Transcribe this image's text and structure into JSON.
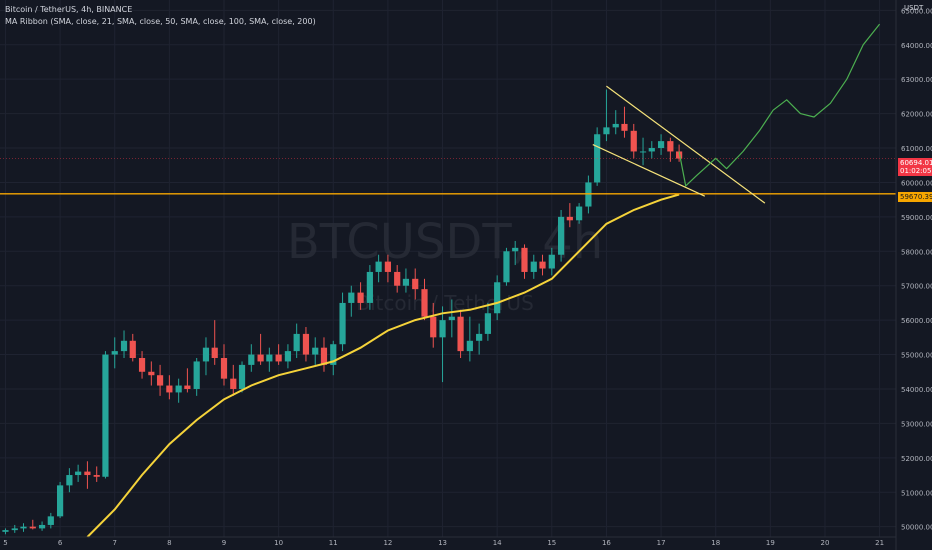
{
  "legend": {
    "symbol_line": "Bitcoin / TetherUS, 4h, BINANCE",
    "indicator_line": "MA Ribbon (SMA, close, 21, SMA, close, 50, SMA, close, 100, SMA, close, 200)"
  },
  "watermark": {
    "symbol": "BTCUSDT, 4h",
    "name": "Bitcoin / TetherUS"
  },
  "currency": "USDT",
  "price_tags": {
    "current": "60694.01",
    "countdown": "01:02:05",
    "level": "59670.39"
  },
  "colors": {
    "background": "#141823",
    "up": "#26a69a",
    "down": "#ef5350",
    "ma": "#f5d33a",
    "level": "#f7a600",
    "projection": "#4caf50",
    "wedge": "#f5e27a",
    "current_price": "#f23645"
  },
  "chart_data": {
    "type": "candlestick",
    "x_axis": {
      "range": [
        4.9,
        21.3
      ],
      "tick_labels": [
        "5",
        "6",
        "7",
        "8",
        "9",
        "10",
        "11",
        "12",
        "13",
        "14",
        "15",
        "16",
        "17",
        "18",
        "19",
        "20",
        "21"
      ]
    },
    "y_axis": {
      "range": [
        49700,
        65300
      ],
      "tick_labels": [
        "50000.00",
        "51000.00",
        "52000.00",
        "53000.00",
        "54000.00",
        "55000.00",
        "56000.00",
        "57000.00",
        "58000.00",
        "59000.00",
        "60000.00",
        "61000.00",
        "62000.00",
        "63000.00",
        "64000.00",
        "65000.00"
      ]
    },
    "grid": true,
    "candles": [
      {
        "t": 5.0,
        "o": 49850,
        "h": 49950,
        "l": 49780,
        "c": 49900
      },
      {
        "t": 5.17,
        "o": 49900,
        "h": 50050,
        "l": 49820,
        "c": 49950
      },
      {
        "t": 5.33,
        "o": 49950,
        "h": 50100,
        "l": 49850,
        "c": 50000
      },
      {
        "t": 5.5,
        "o": 50000,
        "h": 50200,
        "l": 49920,
        "c": 49950
      },
      {
        "t": 5.67,
        "o": 49950,
        "h": 50150,
        "l": 49880,
        "c": 50050
      },
      {
        "t": 5.83,
        "o": 50050,
        "h": 50400,
        "l": 49950,
        "c": 50300
      },
      {
        "t": 6.0,
        "o": 50300,
        "h": 51300,
        "l": 50250,
        "c": 51200
      },
      {
        "t": 6.17,
        "o": 51200,
        "h": 51700,
        "l": 51000,
        "c": 51500
      },
      {
        "t": 6.33,
        "o": 51500,
        "h": 51800,
        "l": 51300,
        "c": 51600
      },
      {
        "t": 6.5,
        "o": 51600,
        "h": 51900,
        "l": 51100,
        "c": 51500
      },
      {
        "t": 6.67,
        "o": 51500,
        "h": 51750,
        "l": 51300,
        "c": 51450
      },
      {
        "t": 6.83,
        "o": 51450,
        "h": 55100,
        "l": 51400,
        "c": 55000
      },
      {
        "t": 7.0,
        "o": 55000,
        "h": 55500,
        "l": 54600,
        "c": 55100
      },
      {
        "t": 7.17,
        "o": 55100,
        "h": 55700,
        "l": 54900,
        "c": 55400
      },
      {
        "t": 7.33,
        "o": 55400,
        "h": 55600,
        "l": 54800,
        "c": 54900
      },
      {
        "t": 7.5,
        "o": 54900,
        "h": 55100,
        "l": 54300,
        "c": 54500
      },
      {
        "t": 7.67,
        "o": 54500,
        "h": 54800,
        "l": 54100,
        "c": 54400
      },
      {
        "t": 7.83,
        "o": 54400,
        "h": 54700,
        "l": 53800,
        "c": 54100
      },
      {
        "t": 8.0,
        "o": 54100,
        "h": 54400,
        "l": 53700,
        "c": 53900
      },
      {
        "t": 8.17,
        "o": 53900,
        "h": 54300,
        "l": 53600,
        "c": 54100
      },
      {
        "t": 8.33,
        "o": 54100,
        "h": 54600,
        "l": 53900,
        "c": 54000
      },
      {
        "t": 8.5,
        "o": 54000,
        "h": 54900,
        "l": 53800,
        "c": 54800
      },
      {
        "t": 8.67,
        "o": 54800,
        "h": 55500,
        "l": 54400,
        "c": 55200
      },
      {
        "t": 8.83,
        "o": 55200,
        "h": 56000,
        "l": 54700,
        "c": 54900
      },
      {
        "t": 9.0,
        "o": 54900,
        "h": 55300,
        "l": 54100,
        "c": 54300
      },
      {
        "t": 9.17,
        "o": 54300,
        "h": 54700,
        "l": 53800,
        "c": 54000
      },
      {
        "t": 9.33,
        "o": 54000,
        "h": 54800,
        "l": 53900,
        "c": 54700
      },
      {
        "t": 9.5,
        "o": 54700,
        "h": 55300,
        "l": 54500,
        "c": 55000
      },
      {
        "t": 9.67,
        "o": 55000,
        "h": 55600,
        "l": 54700,
        "c": 54800
      },
      {
        "t": 9.83,
        "o": 54800,
        "h": 55200,
        "l": 54500,
        "c": 55000
      },
      {
        "t": 10.0,
        "o": 55000,
        "h": 55300,
        "l": 54700,
        "c": 54800
      },
      {
        "t": 10.17,
        "o": 54800,
        "h": 55300,
        "l": 54600,
        "c": 55100
      },
      {
        "t": 10.33,
        "o": 55100,
        "h": 55900,
        "l": 54900,
        "c": 55600
      },
      {
        "t": 10.5,
        "o": 55600,
        "h": 55800,
        "l": 54800,
        "c": 55000
      },
      {
        "t": 10.67,
        "o": 55000,
        "h": 55500,
        "l": 54700,
        "c": 55200
      },
      {
        "t": 10.83,
        "o": 55200,
        "h": 55500,
        "l": 54500,
        "c": 54700
      },
      {
        "t": 11.0,
        "o": 54700,
        "h": 55400,
        "l": 54400,
        "c": 55300
      },
      {
        "t": 11.17,
        "o": 55300,
        "h": 56800,
        "l": 55100,
        "c": 56500
      },
      {
        "t": 11.33,
        "o": 56500,
        "h": 57000,
        "l": 56100,
        "c": 56800
      },
      {
        "t": 11.5,
        "o": 56800,
        "h": 57100,
        "l": 56300,
        "c": 56500
      },
      {
        "t": 11.67,
        "o": 56500,
        "h": 57600,
        "l": 56300,
        "c": 57400
      },
      {
        "t": 11.83,
        "o": 57400,
        "h": 57900,
        "l": 57100,
        "c": 57700
      },
      {
        "t": 12.0,
        "o": 57700,
        "h": 57900,
        "l": 57100,
        "c": 57400
      },
      {
        "t": 12.17,
        "o": 57400,
        "h": 57600,
        "l": 56800,
        "c": 57000
      },
      {
        "t": 12.33,
        "o": 57000,
        "h": 57500,
        "l": 56800,
        "c": 57200
      },
      {
        "t": 12.5,
        "o": 57200,
        "h": 57500,
        "l": 56600,
        "c": 56900
      },
      {
        "t": 12.67,
        "o": 56900,
        "h": 57200,
        "l": 56000,
        "c": 56100
      },
      {
        "t": 12.83,
        "o": 56100,
        "h": 56500,
        "l": 55200,
        "c": 55500
      },
      {
        "t": 13.0,
        "o": 55500,
        "h": 56400,
        "l": 54200,
        "c": 56000
      },
      {
        "t": 13.17,
        "o": 56000,
        "h": 56600,
        "l": 55500,
        "c": 56100
      },
      {
        "t": 13.33,
        "o": 56100,
        "h": 56300,
        "l": 54900,
        "c": 55100
      },
      {
        "t": 13.5,
        "o": 55100,
        "h": 56100,
        "l": 54800,
        "c": 55400
      },
      {
        "t": 13.67,
        "o": 55400,
        "h": 55900,
        "l": 55000,
        "c": 55600
      },
      {
        "t": 13.83,
        "o": 55600,
        "h": 56500,
        "l": 55400,
        "c": 56200
      },
      {
        "t": 14.0,
        "o": 56200,
        "h": 57300,
        "l": 56000,
        "c": 57100
      },
      {
        "t": 14.17,
        "o": 57100,
        "h": 58100,
        "l": 57000,
        "c": 58000
      },
      {
        "t": 14.33,
        "o": 58000,
        "h": 58300,
        "l": 57600,
        "c": 58100
      },
      {
        "t": 14.5,
        "o": 58100,
        "h": 58200,
        "l": 57200,
        "c": 57400
      },
      {
        "t": 14.67,
        "o": 57400,
        "h": 57900,
        "l": 57200,
        "c": 57700
      },
      {
        "t": 14.83,
        "o": 57700,
        "h": 57900,
        "l": 57300,
        "c": 57500
      },
      {
        "t": 15.0,
        "o": 57500,
        "h": 58100,
        "l": 57300,
        "c": 57900
      },
      {
        "t": 15.17,
        "o": 57900,
        "h": 59200,
        "l": 57700,
        "c": 59000
      },
      {
        "t": 15.33,
        "o": 59000,
        "h": 59400,
        "l": 58700,
        "c": 58900
      },
      {
        "t": 15.5,
        "o": 58900,
        "h": 59400,
        "l": 58800,
        "c": 59300
      },
      {
        "t": 15.67,
        "o": 59300,
        "h": 60200,
        "l": 59100,
        "c": 60000
      },
      {
        "t": 15.83,
        "o": 60000,
        "h": 61600,
        "l": 59900,
        "c": 61400
      },
      {
        "t": 16.0,
        "o": 61400,
        "h": 62700,
        "l": 61200,
        "c": 61600
      },
      {
        "t": 16.17,
        "o": 61600,
        "h": 62100,
        "l": 61400,
        "c": 61700
      },
      {
        "t": 16.33,
        "o": 61700,
        "h": 62200,
        "l": 61300,
        "c": 61500
      },
      {
        "t": 16.5,
        "o": 61500,
        "h": 61700,
        "l": 60700,
        "c": 60900
      },
      {
        "t": 16.67,
        "o": 60900,
        "h": 61300,
        "l": 60500,
        "c": 60900
      },
      {
        "t": 16.83,
        "o": 60900,
        "h": 61200,
        "l": 60700,
        "c": 61000
      },
      {
        "t": 17.0,
        "o": 61000,
        "h": 61400,
        "l": 60800,
        "c": 61200
      },
      {
        "t": 17.17,
        "o": 61200,
        "h": 61300,
        "l": 60600,
        "c": 60900
      },
      {
        "t": 17.33,
        "o": 60900,
        "h": 61100,
        "l": 60600,
        "c": 60694
      }
    ],
    "ma_series": [
      {
        "t": 6.5,
        "v": 49700
      },
      {
        "t": 7.0,
        "v": 50500
      },
      {
        "t": 7.5,
        "v": 51500
      },
      {
        "t": 8.0,
        "v": 52400
      },
      {
        "t": 8.5,
        "v": 53100
      },
      {
        "t": 9.0,
        "v": 53700
      },
      {
        "t": 9.5,
        "v": 54100
      },
      {
        "t": 10.0,
        "v": 54400
      },
      {
        "t": 10.5,
        "v": 54600
      },
      {
        "t": 11.0,
        "v": 54800
      },
      {
        "t": 11.5,
        "v": 55200
      },
      {
        "t": 12.0,
        "v": 55700
      },
      {
        "t": 12.5,
        "v": 56000
      },
      {
        "t": 13.0,
        "v": 56200
      },
      {
        "t": 13.5,
        "v": 56300
      },
      {
        "t": 14.0,
        "v": 56500
      },
      {
        "t": 14.5,
        "v": 56800
      },
      {
        "t": 15.0,
        "v": 57200
      },
      {
        "t": 15.5,
        "v": 58000
      },
      {
        "t": 16.0,
        "v": 58800
      },
      {
        "t": 16.5,
        "v": 59200
      },
      {
        "t": 17.0,
        "v": 59500
      },
      {
        "t": 17.33,
        "v": 59650
      }
    ],
    "horizontal_level": 59670.39,
    "current_price": 60694.01,
    "wedge_upper": [
      {
        "t": 16.0,
        "v": 62800
      },
      {
        "t": 18.9,
        "v": 59400
      }
    ],
    "wedge_lower": [
      {
        "t": 15.75,
        "v": 61100
      },
      {
        "t": 17.8,
        "v": 59600
      }
    ],
    "projection": [
      {
        "t": 17.33,
        "v": 60900
      },
      {
        "t": 17.45,
        "v": 59900
      },
      {
        "t": 17.65,
        "v": 60200
      },
      {
        "t": 18.0,
        "v": 60700
      },
      {
        "t": 18.2,
        "v": 60400
      },
      {
        "t": 18.5,
        "v": 60900
      },
      {
        "t": 18.8,
        "v": 61500
      },
      {
        "t": 19.05,
        "v": 62100
      },
      {
        "t": 19.3,
        "v": 62400
      },
      {
        "t": 19.55,
        "v": 62000
      },
      {
        "t": 19.8,
        "v": 61900
      },
      {
        "t": 20.1,
        "v": 62300
      },
      {
        "t": 20.4,
        "v": 63000
      },
      {
        "t": 20.7,
        "v": 64000
      },
      {
        "t": 21.0,
        "v": 64600
      }
    ]
  }
}
